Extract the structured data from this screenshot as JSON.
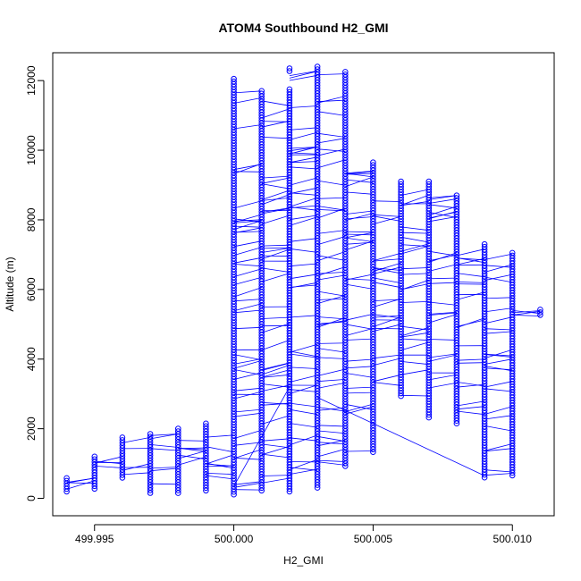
{
  "colors": {
    "series": "#0000ff",
    "axis": "#000000",
    "background": "#ffffff"
  },
  "chart_data": {
    "type": "scatter",
    "title": "ATOM4 Southbound H2_GMI",
    "xlabel": "H2_GMI",
    "ylabel": "Altitude (m)",
    "xlim": [
      499.9935,
      500.0115
    ],
    "ylim": [
      -500,
      12800
    ],
    "x_ticks": [
      499.995,
      500.0,
      500.005,
      500.01
    ],
    "x_tick_labels": [
      "499.995",
      "500.000",
      "500.005",
      "500.010"
    ],
    "y_ticks": [
      0,
      2000,
      4000,
      6000,
      8000,
      10000,
      12000
    ],
    "y_tick_labels": [
      "0",
      "2000",
      "4000",
      "6000",
      "8000",
      "10000",
      "12000"
    ],
    "grid": false,
    "markers": "open circles joined by lines",
    "columns": [
      {
        "x": 499.994,
        "ranges": [
          [
            150,
            580
          ]
        ]
      },
      {
        "x": 499.995,
        "ranges": [
          [
            200,
            1200
          ]
        ]
      },
      {
        "x": 499.996,
        "ranges": [
          [
            550,
            1750
          ]
        ]
      },
      {
        "x": 499.997,
        "ranges": [
          [
            150,
            1850
          ]
        ]
      },
      {
        "x": 499.998,
        "ranges": [
          [
            150,
            2000
          ]
        ]
      },
      {
        "x": 499.999,
        "ranges": [
          [
            150,
            2150
          ]
        ]
      },
      {
        "x": 500.0,
        "ranges": [
          [
            50,
            12050
          ]
        ]
      },
      {
        "x": 500.001,
        "ranges": [
          [
            150,
            11700
          ]
        ]
      },
      {
        "x": 500.002,
        "ranges": [
          [
            150,
            11750
          ],
          [
            12250,
            12350
          ]
        ]
      },
      {
        "x": 500.003,
        "ranges": [
          [
            300,
            12400
          ]
        ]
      },
      {
        "x": 500.004,
        "ranges": [
          [
            900,
            12250
          ]
        ]
      },
      {
        "x": 500.005,
        "ranges": [
          [
            1300,
            9650
          ]
        ]
      },
      {
        "x": 500.006,
        "ranges": [
          [
            2900,
            9100
          ]
        ]
      },
      {
        "x": 500.007,
        "ranges": [
          [
            2300,
            9100
          ]
        ]
      },
      {
        "x": 500.008,
        "ranges": [
          [
            2100,
            8700
          ]
        ]
      },
      {
        "x": 500.009,
        "ranges": [
          [
            550,
            7300
          ]
        ]
      },
      {
        "x": 500.01,
        "ranges": [
          [
            650,
            7050
          ]
        ]
      },
      {
        "x": 500.011,
        "ranges": [
          [
            5200,
            5420
          ]
        ]
      }
    ],
    "long_segments": [
      {
        "x": [
          500.0,
          500.002
        ],
        "y": [
          350,
          3200
        ]
      },
      {
        "x": [
          500.003,
          500.009
        ],
        "y": [
          2900,
          650
        ]
      }
    ]
  }
}
